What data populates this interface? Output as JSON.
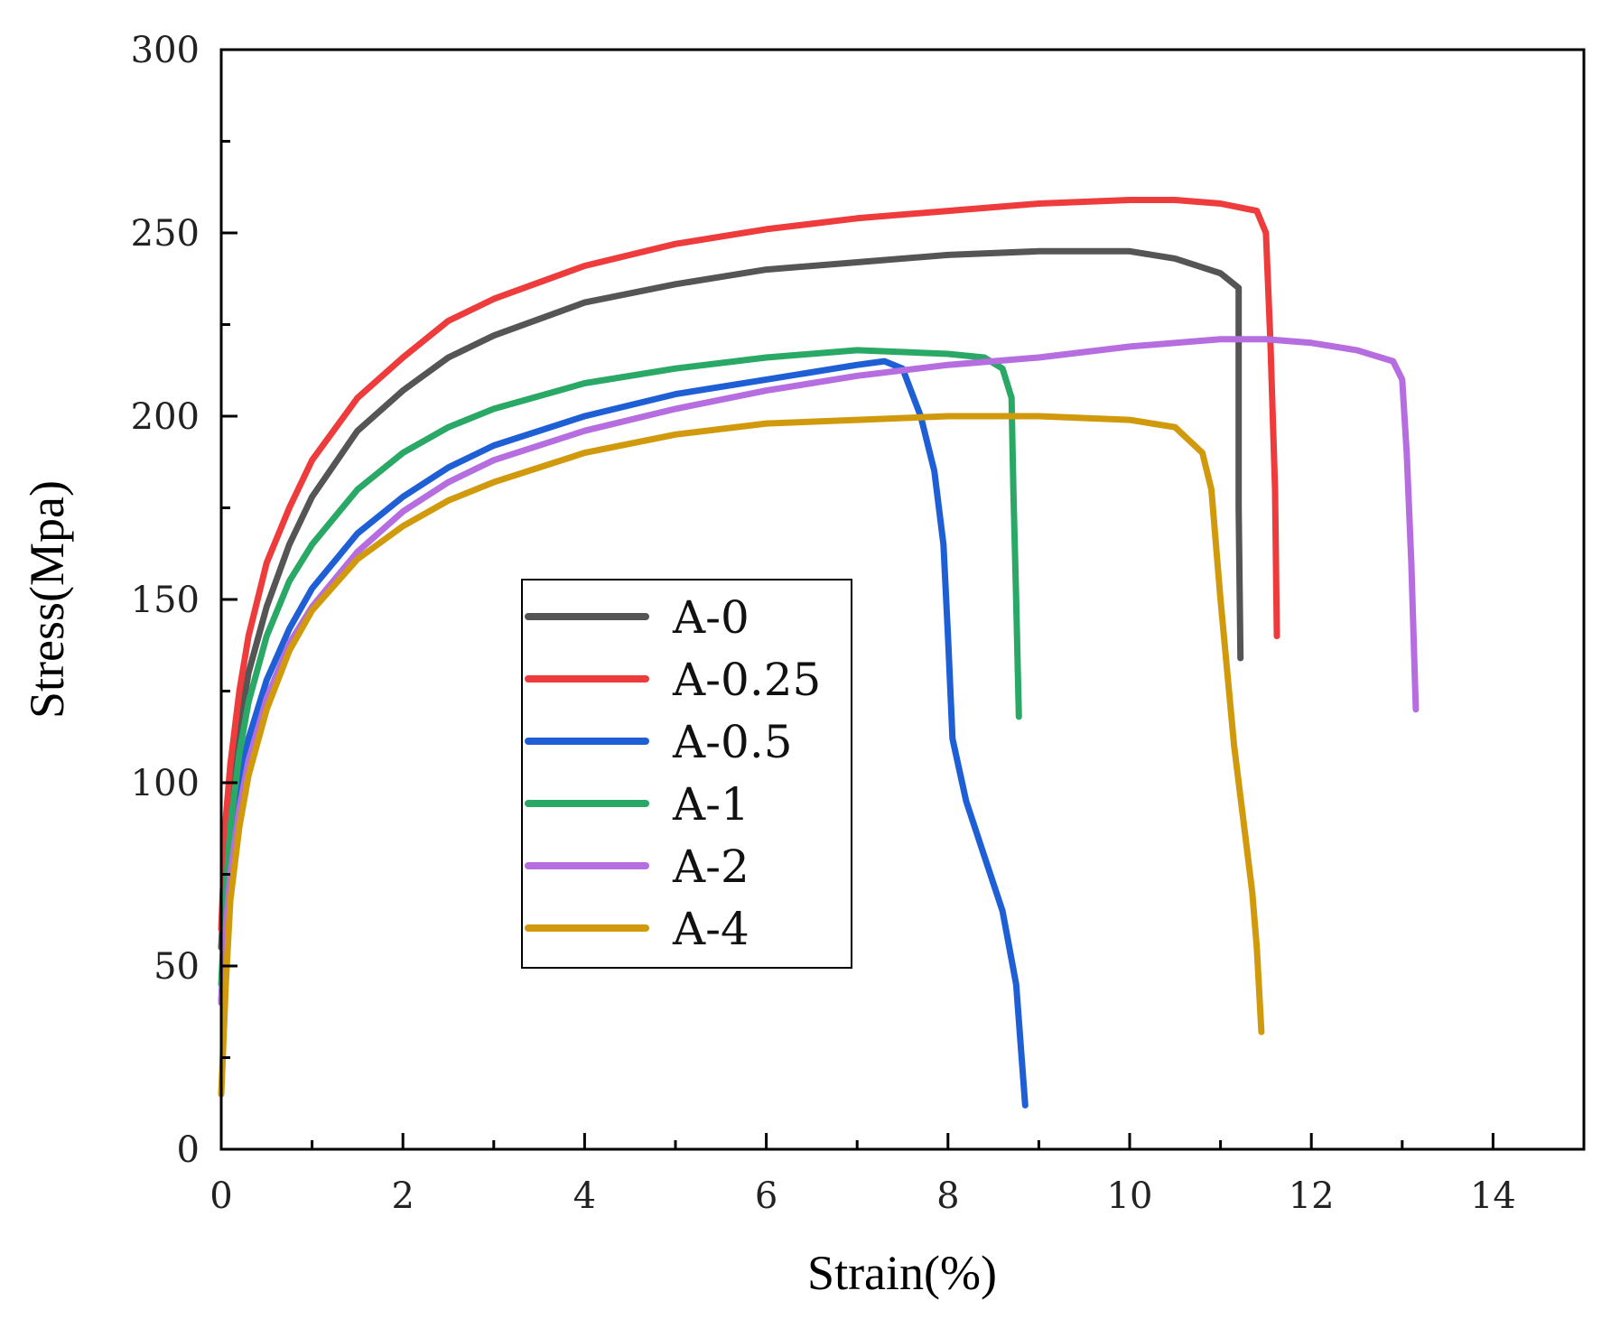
{
  "chart_data": {
    "type": "line",
    "title": "",
    "xlabel": "Strain(%)",
    "ylabel": "Stress(Mpa)",
    "xlim": [
      0,
      15
    ],
    "ylim": [
      0,
      300
    ],
    "xticks": [
      0,
      2,
      4,
      6,
      8,
      10,
      12,
      14
    ],
    "yticks": [
      0,
      50,
      100,
      150,
      200,
      250,
      300
    ],
    "xtick_labels": [
      "0",
      "2",
      "4",
      "6",
      "8",
      "10",
      "12",
      "14"
    ],
    "ytick_labels": [
      "0",
      "50",
      "100",
      "150",
      "200",
      "250",
      "300"
    ],
    "legend_position": "center-left",
    "series": [
      {
        "name": "A-0",
        "color": "#555555",
        "points": [
          [
            0,
            55
          ],
          [
            0.05,
            80
          ],
          [
            0.1,
            95
          ],
          [
            0.2,
            115
          ],
          [
            0.3,
            130
          ],
          [
            0.5,
            148
          ],
          [
            0.75,
            165
          ],
          [
            1,
            178
          ],
          [
            1.5,
            196
          ],
          [
            2,
            207
          ],
          [
            2.5,
            216
          ],
          [
            3,
            222
          ],
          [
            4,
            231
          ],
          [
            5,
            236
          ],
          [
            6,
            240
          ],
          [
            7,
            242
          ],
          [
            8,
            244
          ],
          [
            9,
            245
          ],
          [
            10,
            245
          ],
          [
            10.5,
            243
          ],
          [
            11,
            239
          ],
          [
            11.2,
            235
          ],
          [
            11.2,
            175
          ],
          [
            11.22,
            134
          ]
        ]
      },
      {
        "name": "A-0.25",
        "color": "#ee3b3b",
        "points": [
          [
            0,
            60
          ],
          [
            0.05,
            90
          ],
          [
            0.1,
            105
          ],
          [
            0.2,
            125
          ],
          [
            0.3,
            140
          ],
          [
            0.5,
            160
          ],
          [
            0.75,
            175
          ],
          [
            1,
            188
          ],
          [
            1.5,
            205
          ],
          [
            2,
            216
          ],
          [
            2.5,
            226
          ],
          [
            3,
            232
          ],
          [
            4,
            241
          ],
          [
            5,
            247
          ],
          [
            6,
            251
          ],
          [
            7,
            254
          ],
          [
            8,
            256
          ],
          [
            9,
            258
          ],
          [
            10,
            259
          ],
          [
            10.5,
            259
          ],
          [
            11,
            258
          ],
          [
            11.4,
            256
          ],
          [
            11.5,
            250
          ],
          [
            11.55,
            220
          ],
          [
            11.6,
            180
          ],
          [
            11.62,
            140
          ]
        ]
      },
      {
        "name": "A-0.5",
        "color": "#1f5fd6",
        "points": [
          [
            0,
            40
          ],
          [
            0.05,
            65
          ],
          [
            0.1,
            80
          ],
          [
            0.2,
            100
          ],
          [
            0.3,
            112
          ],
          [
            0.5,
            128
          ],
          [
            0.75,
            142
          ],
          [
            1,
            153
          ],
          [
            1.5,
            168
          ],
          [
            2,
            178
          ],
          [
            2.5,
            186
          ],
          [
            3,
            192
          ],
          [
            4,
            200
          ],
          [
            5,
            206
          ],
          [
            6,
            210
          ],
          [
            7,
            214
          ],
          [
            7.3,
            215
          ],
          [
            7.5,
            213
          ],
          [
            7.7,
            200
          ],
          [
            7.85,
            185
          ],
          [
            7.95,
            165
          ],
          [
            8,
            140
          ],
          [
            8.05,
            112
          ],
          [
            8.2,
            95
          ],
          [
            8.4,
            80
          ],
          [
            8.6,
            65
          ],
          [
            8.75,
            45
          ],
          [
            8.85,
            12
          ]
        ]
      },
      {
        "name": "A-1",
        "color": "#2aa865",
        "points": [
          [
            0,
            45
          ],
          [
            0.05,
            70
          ],
          [
            0.1,
            88
          ],
          [
            0.2,
            108
          ],
          [
            0.3,
            122
          ],
          [
            0.5,
            140
          ],
          [
            0.75,
            155
          ],
          [
            1,
            165
          ],
          [
            1.5,
            180
          ],
          [
            2,
            190
          ],
          [
            2.5,
            197
          ],
          [
            3,
            202
          ],
          [
            4,
            209
          ],
          [
            5,
            213
          ],
          [
            6,
            216
          ],
          [
            7,
            218
          ],
          [
            8,
            217
          ],
          [
            8.4,
            216
          ],
          [
            8.6,
            213
          ],
          [
            8.7,
            205
          ],
          [
            8.72,
            180
          ],
          [
            8.75,
            150
          ],
          [
            8.78,
            118
          ]
        ]
      },
      {
        "name": "A-2",
        "color": "#b56de0",
        "points": [
          [
            0,
            40
          ],
          [
            0.05,
            60
          ],
          [
            0.1,
            75
          ],
          [
            0.2,
            93
          ],
          [
            0.3,
            106
          ],
          [
            0.5,
            123
          ],
          [
            0.75,
            138
          ],
          [
            1,
            148
          ],
          [
            1.5,
            163
          ],
          [
            2,
            174
          ],
          [
            2.5,
            182
          ],
          [
            3,
            188
          ],
          [
            4,
            196
          ],
          [
            5,
            202
          ],
          [
            6,
            207
          ],
          [
            7,
            211
          ],
          [
            8,
            214
          ],
          [
            9,
            216
          ],
          [
            10,
            219
          ],
          [
            11,
            221
          ],
          [
            11.5,
            221
          ],
          [
            12,
            220
          ],
          [
            12.5,
            218
          ],
          [
            12.9,
            215
          ],
          [
            13,
            210
          ],
          [
            13.05,
            190
          ],
          [
            13.1,
            160
          ],
          [
            13.15,
            120
          ]
        ]
      },
      {
        "name": "A-4",
        "color": "#d19a0c",
        "points": [
          [
            0,
            15
          ],
          [
            0.05,
            45
          ],
          [
            0.1,
            68
          ],
          [
            0.2,
            88
          ],
          [
            0.3,
            102
          ],
          [
            0.5,
            120
          ],
          [
            0.75,
            136
          ],
          [
            1,
            147
          ],
          [
            1.5,
            161
          ],
          [
            2,
            170
          ],
          [
            2.5,
            177
          ],
          [
            3,
            182
          ],
          [
            4,
            190
          ],
          [
            5,
            195
          ],
          [
            6,
            198
          ],
          [
            7,
            199
          ],
          [
            8,
            200
          ],
          [
            9,
            200
          ],
          [
            10,
            199
          ],
          [
            10.5,
            197
          ],
          [
            10.8,
            190
          ],
          [
            10.9,
            180
          ],
          [
            11,
            150
          ],
          [
            11.15,
            110
          ],
          [
            11.25,
            90
          ],
          [
            11.35,
            70
          ],
          [
            11.4,
            55
          ],
          [
            11.45,
            32
          ]
        ]
      }
    ]
  }
}
